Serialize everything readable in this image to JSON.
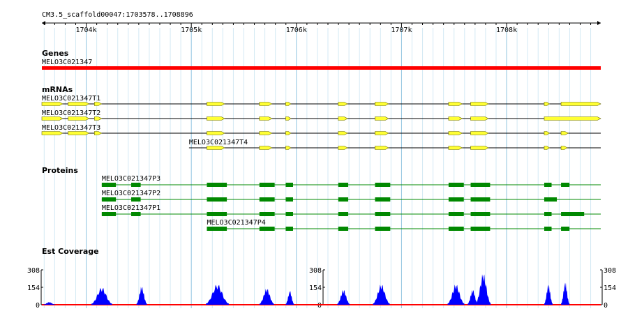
{
  "region": "CM3.5_scaffold00047:1703578..1708896",
  "ruler": {
    "start": 1703578,
    "end": 1708896,
    "ticks": [
      "1704k",
      "1705k",
      "1706k",
      "1707k",
      "1708k"
    ]
  },
  "tracks": {
    "genes": {
      "title": "Genes",
      "items": [
        {
          "label": "MELO3C021347",
          "start": 1703578,
          "end": 1708896,
          "color": "#ff0000"
        }
      ]
    },
    "mrnas": {
      "title": "mRNAs",
      "exon_color": "#ffff33",
      "items": [
        {
          "label": "MELO3C021347T1",
          "start": 1703578,
          "end": 1708896,
          "exons": [
            [
              1703578,
              1703778
            ],
            [
              1703828,
              1704028
            ],
            [
              1704078,
              1704148
            ],
            [
              1705148,
              1705318
            ],
            [
              1705648,
              1705768
            ],
            [
              1705898,
              1705948
            ],
            [
              1706398,
              1706488
            ],
            [
              1706748,
              1706878
            ],
            [
              1707448,
              1707578
            ],
            [
              1707658,
              1707828
            ],
            [
              1708358,
              1708408
            ],
            [
              1708518,
              1708896
            ]
          ]
        },
        {
          "label": "MELO3C021347T2",
          "start": 1703578,
          "end": 1708896,
          "exons": [
            [
              1703578,
              1703778
            ],
            [
              1703828,
              1704028
            ],
            [
              1704078,
              1704148
            ],
            [
              1705148,
              1705318
            ],
            [
              1705648,
              1705768
            ],
            [
              1705898,
              1705948
            ],
            [
              1706398,
              1706488
            ],
            [
              1706748,
              1706878
            ],
            [
              1707448,
              1707578
            ],
            [
              1707658,
              1707828
            ],
            [
              1708358,
              1708896
            ]
          ]
        },
        {
          "label": "MELO3C021347T3",
          "start": 1703578,
          "end": 1708896,
          "exons": [
            [
              1703578,
              1703778
            ],
            [
              1703828,
              1704028
            ],
            [
              1704078,
              1704148
            ],
            [
              1705148,
              1705318
            ],
            [
              1705648,
              1705768
            ],
            [
              1705898,
              1705948
            ],
            [
              1706398,
              1706488
            ],
            [
              1706748,
              1706878
            ],
            [
              1707448,
              1707578
            ],
            [
              1707658,
              1707828
            ],
            [
              1708358,
              1708408
            ],
            [
              1708518,
              1708588
            ]
          ]
        },
        {
          "label": "MELO3C021347T4",
          "start": 1704978,
          "end": 1708896,
          "exons": [
            [
              1705148,
              1705318
            ],
            [
              1705648,
              1705768
            ],
            [
              1705898,
              1705948
            ],
            [
              1706398,
              1706488
            ],
            [
              1706748,
              1706878
            ],
            [
              1707448,
              1707578
            ],
            [
              1707658,
              1707828
            ],
            [
              1708358,
              1708408
            ],
            [
              1708518,
              1708578
            ]
          ]
        }
      ]
    },
    "proteins": {
      "title": "Proteins",
      "block_color": "#008800",
      "items": [
        {
          "label": "MELO3C021347P3",
          "start": 1704148,
          "end": 1708896,
          "blocks": [
            [
              1704148,
              1704283
            ],
            [
              1704428,
              1704518
            ],
            [
              1705148,
              1705338
            ],
            [
              1705648,
              1705793
            ],
            [
              1705898,
              1705968
            ],
            [
              1706398,
              1706493
            ],
            [
              1706748,
              1706893
            ],
            [
              1707448,
              1707593
            ],
            [
              1707658,
              1707843
            ],
            [
              1708358,
              1708428
            ],
            [
              1708518,
              1708598
            ]
          ]
        },
        {
          "label": "MELO3C021347P2",
          "start": 1704148,
          "end": 1708896,
          "blocks": [
            [
              1704148,
              1704283
            ],
            [
              1704428,
              1704518
            ],
            [
              1705148,
              1705338
            ],
            [
              1705648,
              1705793
            ],
            [
              1705898,
              1705968
            ],
            [
              1706398,
              1706493
            ],
            [
              1706748,
              1706893
            ],
            [
              1707448,
              1707593
            ],
            [
              1707658,
              1707843
            ],
            [
              1708358,
              1708478
            ]
          ]
        },
        {
          "label": "MELO3C021347P1",
          "start": 1704148,
          "end": 1708896,
          "blocks": [
            [
              1704148,
              1704283
            ],
            [
              1704428,
              1704518
            ],
            [
              1705148,
              1705338
            ],
            [
              1705648,
              1705793
            ],
            [
              1705898,
              1705968
            ],
            [
              1706398,
              1706493
            ],
            [
              1706748,
              1706893
            ],
            [
              1707448,
              1707593
            ],
            [
              1707658,
              1707843
            ],
            [
              1708358,
              1708428
            ],
            [
              1708518,
              1708738
            ]
          ]
        },
        {
          "label": "MELO3C021347P4",
          "start": 1705148,
          "end": 1708896,
          "blocks": [
            [
              1705148,
              1705338
            ],
            [
              1705648,
              1705793
            ],
            [
              1705898,
              1705968
            ],
            [
              1706398,
              1706493
            ],
            [
              1706748,
              1706893
            ],
            [
              1707448,
              1707593
            ],
            [
              1707658,
              1707843
            ],
            [
              1708358,
              1708428
            ],
            [
              1708518,
              1708598
            ]
          ]
        }
      ]
    },
    "coverage": {
      "title": "Est Coverage",
      "ymax": 308,
      "yticks": [
        "308",
        "154",
        "0"
      ],
      "fill_color": "#0000ff",
      "baseline_color": "#ff0000",
      "peaks": [
        {
          "center": 1703648,
          "half_width": 60,
          "height": 25
        },
        {
          "center": 1704148,
          "half_width": 100,
          "height": 160
        },
        {
          "center": 1704528,
          "half_width": 50,
          "height": 170
        },
        {
          "center": 1705248,
          "half_width": 110,
          "height": 190
        },
        {
          "center": 1705718,
          "half_width": 70,
          "height": 150
        },
        {
          "center": 1705938,
          "half_width": 40,
          "height": 130
        },
        {
          "center": 1706448,
          "half_width": 60,
          "height": 140
        },
        {
          "center": 1706808,
          "half_width": 80,
          "height": 190
        },
        {
          "center": 1707518,
          "half_width": 80,
          "height": 190
        },
        {
          "center": 1707678,
          "half_width": 50,
          "height": 140
        },
        {
          "center": 1707778,
          "half_width": 70,
          "height": 290
        },
        {
          "center": 1708398,
          "half_width": 40,
          "height": 190
        },
        {
          "center": 1708558,
          "half_width": 40,
          "height": 210
        }
      ]
    }
  }
}
